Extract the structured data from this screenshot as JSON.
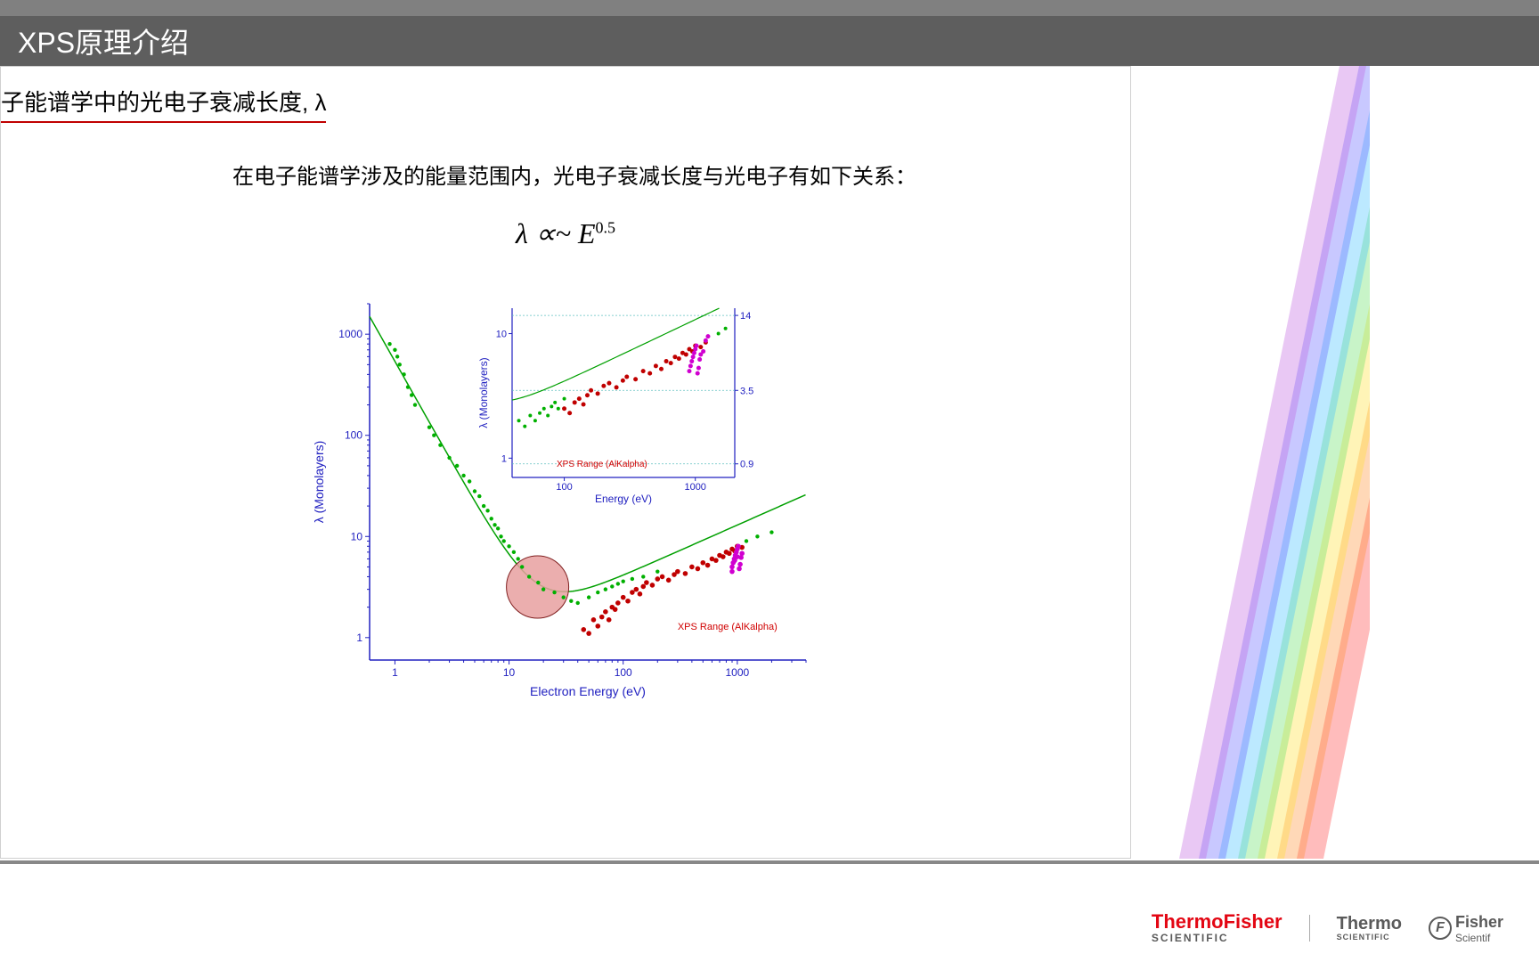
{
  "header": {
    "title": "XPS原理介绍"
  },
  "subtitle": "子能谱学中的光电子衰减长度, λ",
  "body_text": "在电子能谱学涉及的能量范围内，光电子衰减长度与光电子有如下关系：",
  "formula": {
    "lambda": "λ",
    "prop": " ∝~ ",
    "E": "E",
    "exp": "0.5"
  },
  "main_chart": {
    "type": "scatter",
    "xlabel": "Electron Energy (eV)",
    "ylabel": "λ (Monolayers)",
    "xscale": "log",
    "yscale": "log",
    "xticks": [
      "1",
      "10",
      "100",
      "1000"
    ],
    "yticks": [
      "1",
      "10",
      "100",
      "1000"
    ],
    "xlim": [
      0.6,
      4000
    ],
    "ylim": [
      0.6,
      2000
    ],
    "axis_color": "#2020c0",
    "label_color": "#2020c0",
    "label_fontsize": 14,
    "tick_fontsize": 12,
    "curve_color": "#00a000",
    "annotation": {
      "text": "XPS Range (AlKalpha)",
      "color": "#d00000",
      "fontsize": 11
    },
    "highlight_circle": {
      "cx_log": 1.25,
      "cy_log": 0.5,
      "r": 35,
      "fill": "#e8a0a0",
      "stroke": "#802020",
      "opacity": 0.85
    },
    "series_colors": {
      "green": "#00b000",
      "red": "#c00000",
      "magenta": "#d000d0"
    },
    "green_points": [
      [
        0.9,
        800
      ],
      [
        1.0,
        700
      ],
      [
        1.05,
        600
      ],
      [
        1.1,
        500
      ],
      [
        1.2,
        400
      ],
      [
        1.3,
        300
      ],
      [
        1.4,
        250
      ],
      [
        1.5,
        200
      ],
      [
        2,
        120
      ],
      [
        2.2,
        100
      ],
      [
        2.5,
        80
      ],
      [
        3,
        60
      ],
      [
        3.5,
        50
      ],
      [
        4,
        40
      ],
      [
        4.5,
        35
      ],
      [
        5,
        28
      ],
      [
        5.5,
        25
      ],
      [
        6,
        20
      ],
      [
        6.5,
        18
      ],
      [
        7,
        15
      ],
      [
        7.5,
        13
      ],
      [
        8,
        12
      ],
      [
        8.5,
        10
      ],
      [
        9,
        9
      ],
      [
        10,
        8
      ],
      [
        11,
        7
      ],
      [
        12,
        6
      ],
      [
        13,
        5
      ],
      [
        15,
        4
      ],
      [
        18,
        3.5
      ],
      [
        20,
        3
      ],
      [
        25,
        2.8
      ],
      [
        30,
        2.5
      ],
      [
        35,
        2.3
      ],
      [
        40,
        2.2
      ],
      [
        50,
        2.5
      ],
      [
        60,
        2.8
      ],
      [
        70,
        3
      ],
      [
        80,
        3.2
      ],
      [
        90,
        3.4
      ],
      [
        100,
        3.6
      ],
      [
        120,
        3.8
      ],
      [
        150,
        4
      ],
      [
        200,
        4.5
      ],
      [
        1200,
        9
      ],
      [
        1500,
        10
      ],
      [
        2000,
        11
      ]
    ],
    "red_points": [
      [
        45,
        1.2
      ],
      [
        50,
        1.1
      ],
      [
        55,
        1.5
      ],
      [
        60,
        1.3
      ],
      [
        65,
        1.6
      ],
      [
        70,
        1.8
      ],
      [
        75,
        1.5
      ],
      [
        80,
        2
      ],
      [
        85,
        1.9
      ],
      [
        90,
        2.2
      ],
      [
        100,
        2.5
      ],
      [
        110,
        2.3
      ],
      [
        120,
        2.8
      ],
      [
        130,
        3
      ],
      [
        140,
        2.7
      ],
      [
        150,
        3.2
      ],
      [
        160,
        3.5
      ],
      [
        180,
        3.3
      ],
      [
        200,
        3.8
      ],
      [
        220,
        4
      ],
      [
        250,
        3.7
      ],
      [
        280,
        4.2
      ],
      [
        300,
        4.5
      ],
      [
        350,
        4.3
      ],
      [
        400,
        5
      ],
      [
        450,
        4.8
      ],
      [
        500,
        5.5
      ],
      [
        550,
        5.2
      ],
      [
        600,
        6
      ],
      [
        650,
        5.8
      ],
      [
        700,
        6.5
      ],
      [
        750,
        6.3
      ],
      [
        800,
        7
      ],
      [
        850,
        6.8
      ],
      [
        900,
        7.5
      ],
      [
        950,
        7.2
      ],
      [
        1000,
        8
      ],
      [
        1100,
        7.8
      ]
    ],
    "magenta_points": [
      [
        900,
        5
      ],
      [
        920,
        5.5
      ],
      [
        940,
        6
      ],
      [
        960,
        6.5
      ],
      [
        980,
        7
      ],
      [
        1000,
        7.5
      ],
      [
        1020,
        8
      ],
      [
        1040,
        4.8
      ],
      [
        1060,
        5.3
      ],
      [
        1080,
        6.2
      ],
      [
        1100,
        6.8
      ],
      [
        900,
        4.5
      ],
      [
        950,
        5.8
      ],
      [
        1000,
        6.3
      ]
    ]
  },
  "inset_chart": {
    "type": "scatter",
    "xlabel": "Energy (eV)",
    "ylabel": "λ (Monolayers)",
    "xscale": "log",
    "yscale": "log",
    "xticks": [
      "100",
      "1000"
    ],
    "yticks": [
      "1",
      "10"
    ],
    "right_ticks": [
      "0.9",
      "3.5",
      "14"
    ],
    "xlim": [
      40,
      2000
    ],
    "ylim": [
      0.7,
      16
    ],
    "axis_color": "#2020c0",
    "curve_color": "#00a000",
    "annotation": {
      "text": "XPS Range (AlKalpha)",
      "color": "#d00000"
    },
    "series_colors": {
      "green": "#00b000",
      "red": "#c00000",
      "magenta": "#d000d0"
    },
    "green_points": [
      [
        45,
        2
      ],
      [
        50,
        1.8
      ],
      [
        55,
        2.2
      ],
      [
        60,
        2
      ],
      [
        65,
        2.3
      ],
      [
        70,
        2.5
      ],
      [
        75,
        2.2
      ],
      [
        80,
        2.6
      ],
      [
        85,
        2.8
      ],
      [
        90,
        2.5
      ],
      [
        100,
        3
      ],
      [
        1500,
        10
      ],
      [
        1700,
        11
      ]
    ],
    "red_points": [
      [
        100,
        2.5
      ],
      [
        110,
        2.3
      ],
      [
        120,
        2.8
      ],
      [
        130,
        3
      ],
      [
        140,
        2.7
      ],
      [
        150,
        3.2
      ],
      [
        160,
        3.5
      ],
      [
        180,
        3.3
      ],
      [
        200,
        3.8
      ],
      [
        220,
        4
      ],
      [
        250,
        3.7
      ],
      [
        280,
        4.2
      ],
      [
        300,
        4.5
      ],
      [
        350,
        4.3
      ],
      [
        400,
        5
      ],
      [
        450,
        4.8
      ],
      [
        500,
        5.5
      ],
      [
        550,
        5.2
      ],
      [
        600,
        6
      ],
      [
        650,
        5.8
      ],
      [
        700,
        6.5
      ],
      [
        750,
        6.3
      ],
      [
        800,
        7
      ],
      [
        850,
        6.8
      ],
      [
        900,
        7.5
      ],
      [
        950,
        7.2
      ],
      [
        1000,
        8
      ],
      [
        1100,
        7.8
      ],
      [
        1200,
        8.5
      ]
    ],
    "magenta_points": [
      [
        900,
        5
      ],
      [
        920,
        5.5
      ],
      [
        940,
        6
      ],
      [
        960,
        6.5
      ],
      [
        980,
        7
      ],
      [
        1000,
        7.5
      ],
      [
        1020,
        8
      ],
      [
        1040,
        4.8
      ],
      [
        1060,
        5.3
      ],
      [
        1080,
        6.2
      ],
      [
        1100,
        6.8
      ],
      [
        1150,
        7.2
      ],
      [
        1200,
        8.8
      ],
      [
        1250,
        9.5
      ]
    ]
  },
  "rainbow_colors": [
    "#ff4040",
    "#ff9030",
    "#ffe030",
    "#60e060",
    "#40c0ff",
    "#6060ff",
    "#c060e0"
  ],
  "logos": {
    "thermofisher": "ThermoFisher",
    "scientific": "SCIENTIFIC",
    "thermo": "Thermo",
    "thermo_sub": "SCIENTIFIC",
    "fisher": "Fisher",
    "fisher_sub": "Scientif"
  }
}
